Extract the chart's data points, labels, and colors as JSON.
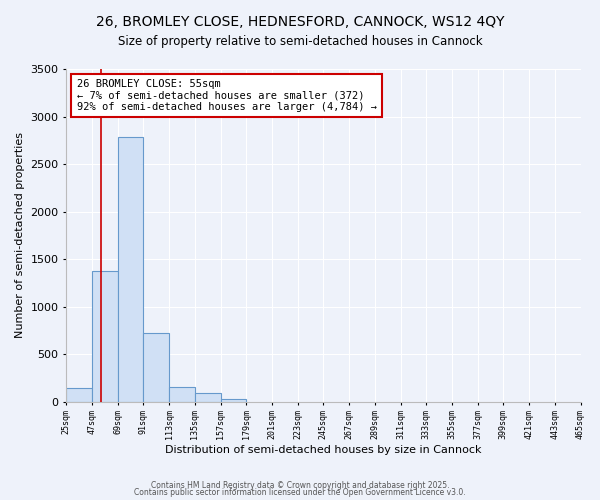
{
  "title": "26, BROMLEY CLOSE, HEDNESFORD, CANNOCK, WS12 4QY",
  "subtitle": "Size of property relative to semi-detached houses in Cannock",
  "xlabel": "Distribution of semi-detached houses by size in Cannock",
  "ylabel": "Number of semi-detached properties",
  "bin_edges": [
    25,
    47,
    69,
    91,
    113,
    135,
    157,
    179,
    201,
    223,
    245,
    267,
    289,
    311,
    333,
    355,
    377,
    399,
    421,
    443,
    465
  ],
  "bar_heights": [
    140,
    1380,
    2780,
    720,
    160,
    90,
    30,
    0,
    0,
    0,
    0,
    0,
    0,
    0,
    0,
    0,
    0,
    0,
    0,
    0
  ],
  "bar_color": "#d0e0f5",
  "bar_edge_color": "#6699cc",
  "red_line_x": 55,
  "annotation_title": "26 BROMLEY CLOSE: 55sqm",
  "annotation_line1": "← 7% of semi-detached houses are smaller (372)",
  "annotation_line2": "92% of semi-detached houses are larger (4,784) →",
  "annotation_box_color": "#ffffff",
  "annotation_box_edge_color": "#cc0000",
  "red_line_color": "#cc0000",
  "ylim": [
    0,
    3500
  ],
  "xlim": [
    25,
    465
  ],
  "bg_color": "#eef2fa",
  "footer1": "Contains HM Land Registry data © Crown copyright and database right 2025.",
  "footer2": "Contains public sector information licensed under the Open Government Licence v3.0."
}
